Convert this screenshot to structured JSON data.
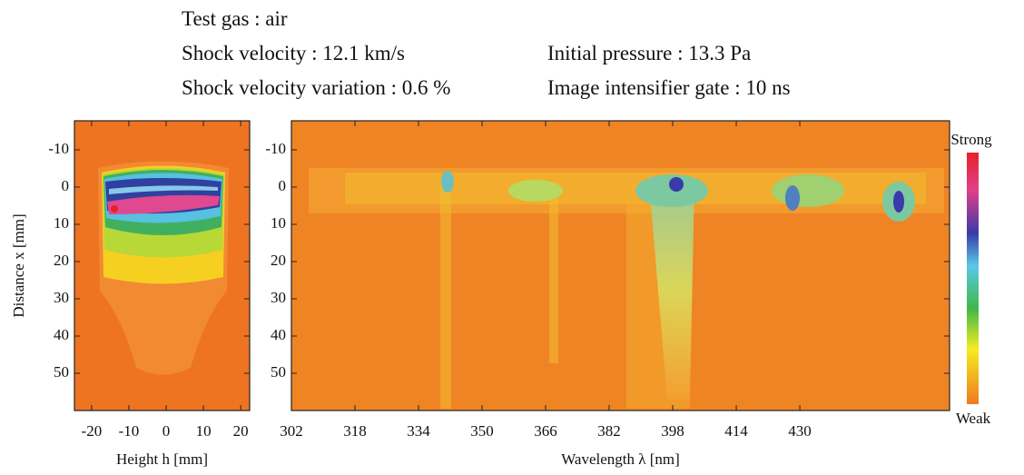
{
  "header": {
    "test_gas": "Test gas : air",
    "shock_velocity": "Shock velocity : 12.1 km/s",
    "initial_pressure": "Initial pressure : 13.3 Pa",
    "velocity_variation": "Shock velocity variation : 0.6 %",
    "gate": "Image intensifier gate : 10 ns"
  },
  "chart_data": [
    {
      "type": "heatmap",
      "x_label": "Height h  [mm]",
      "y_label": "Distance x  [mm]",
      "xlim": [
        -24.6,
        22.4
      ],
      "xticks": [
        -20,
        -10,
        0,
        10,
        20
      ],
      "ylim": [
        -17.8,
        60
      ],
      "yticks": [
        -10,
        0,
        10,
        20,
        30,
        40,
        50
      ]
    },
    {
      "type": "heatmap",
      "x_label": "Wavelength λ  [nm]",
      "xlim": [
        302,
        467.7
      ],
      "xticks": [
        302,
        318,
        334,
        350,
        366,
        382,
        398,
        414,
        430
      ],
      "ylim": [
        -17.8,
        60
      ],
      "yticks": [
        -10,
        0,
        10,
        20,
        30,
        40,
        50
      ],
      "colorbar_labels": [
        "Strong",
        "Weak"
      ]
    }
  ]
}
